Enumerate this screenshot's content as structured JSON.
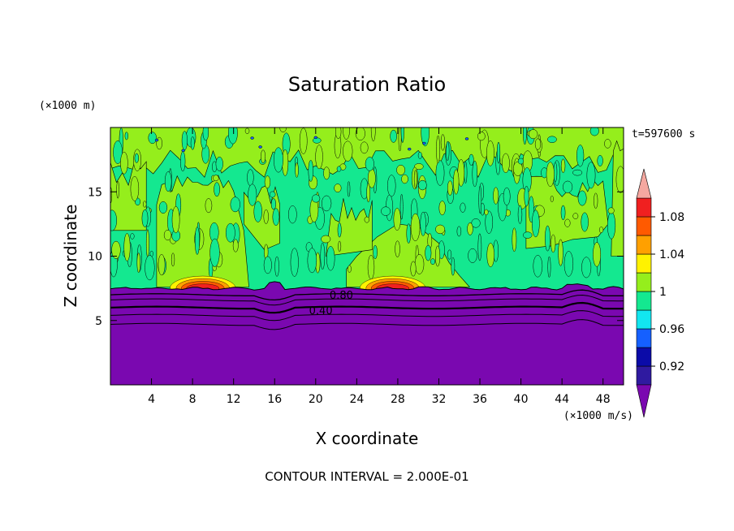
{
  "chart_data": {
    "type": "heatmap",
    "title": "Saturation Ratio",
    "xlabel": "X coordinate",
    "ylabel": "Z coordinate",
    "x_units": "(×1000 m/s)",
    "y_units": "(×1000 m)",
    "xlim": [
      0,
      50
    ],
    "ylim": [
      0,
      20
    ],
    "x_ticks": [
      4,
      8,
      12,
      16,
      20,
      24,
      28,
      32,
      36,
      40,
      44,
      48
    ],
    "y_ticks": [
      5,
      10,
      15
    ],
    "time_label": "t=597600 s",
    "footer": "CONTOUR INTERVAL = 2.000E-01",
    "contour_labels": [
      {
        "text": "0.80",
        "x": 22.5,
        "y": 7.0
      },
      {
        "text": "0.40",
        "x": 20.5,
        "y": 5.8
      }
    ],
    "colorbar": {
      "levels": [
        0.9,
        0.92,
        0.94,
        0.96,
        0.98,
        1.0,
        1.02,
        1.04,
        1.06,
        1.08,
        1.1
      ],
      "labels": [
        "0.92",
        "0.96",
        "1",
        "1.04",
        "1.08"
      ],
      "colors": [
        "#2f1aa0",
        "#0b0ba8",
        "#1560ff",
        "#12e6f0",
        "#14e890",
        "#95ee1c",
        "#fff200",
        "#ffa000",
        "#ff5a00",
        "#f02020"
      ],
      "under_color": "#7a08b0",
      "over_color": "#f5a8a0"
    },
    "field": {
      "dry_layer": {
        "value": "< 0.9",
        "color": "#7a08b0",
        "top_z": 7.5
      },
      "saturated_layer": {
        "value": "0.98 - 1.0",
        "color": "#14e890"
      },
      "supersaturated_plumes": {
        "value": "1.0 - 1.02",
        "color": "#95ee1c"
      },
      "peaks": [
        {
          "x": 9.0,
          "value": "1.08"
        },
        {
          "x": 27.5,
          "value": "1.08"
        }
      ]
    }
  }
}
